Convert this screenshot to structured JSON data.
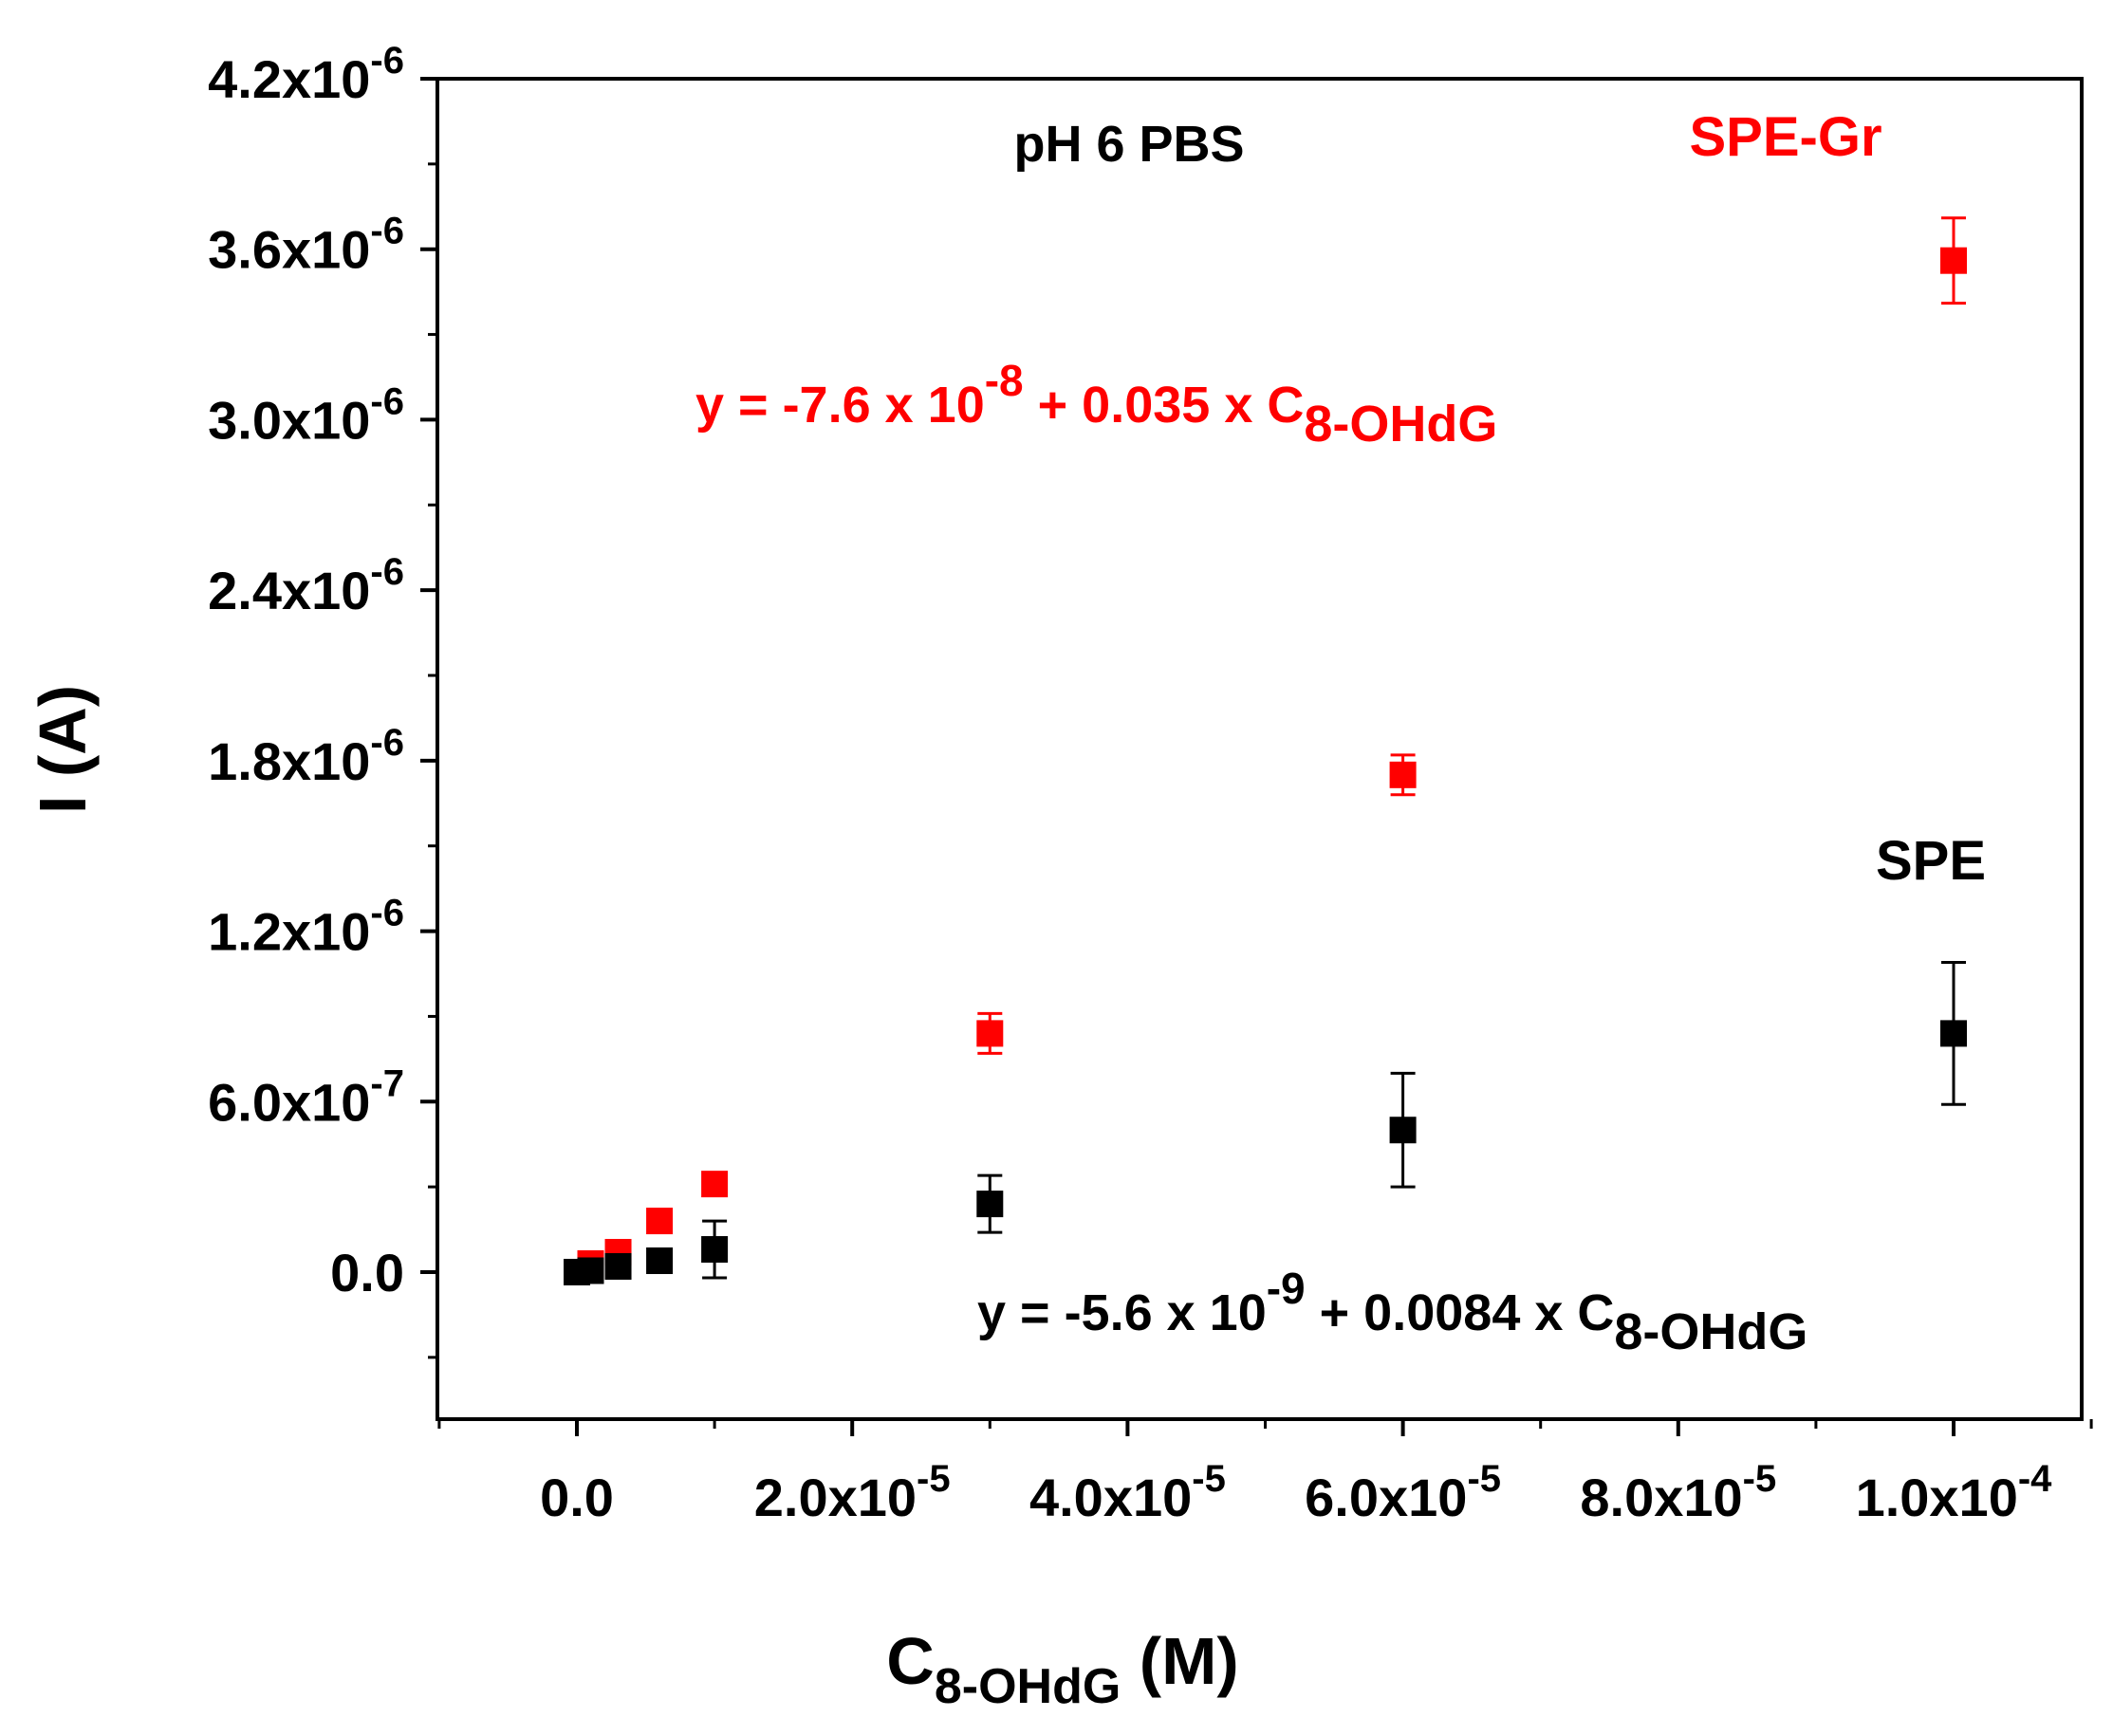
{
  "chart_data": {
    "type": "scatter",
    "title": "",
    "xlabel": {
      "main": "C",
      "sub": "8-OHdG",
      "unit": " (M)"
    },
    "ylabel": "I (A)",
    "xlim": [
      -1e-05,
      0.00011
    ],
    "ylim": [
      -7e-07,
      4.2e-06
    ],
    "grid": false,
    "legend": "none",
    "x_ticks": [
      {
        "value": 0,
        "mantissa": "0.0",
        "exponent": ""
      },
      {
        "value": 2e-05,
        "mantissa": "2.0x10",
        "exponent": "-5"
      },
      {
        "value": 4e-05,
        "mantissa": "4.0x10",
        "exponent": "-5"
      },
      {
        "value": 6e-05,
        "mantissa": "6.0x10",
        "exponent": "-5"
      },
      {
        "value": 8e-05,
        "mantissa": "8.0x10",
        "exponent": "-5"
      },
      {
        "value": 0.0001,
        "mantissa": "1.0x10",
        "exponent": "-4"
      }
    ],
    "x_minor_ticks": [
      -1e-05,
      1e-05,
      3e-05,
      5e-05,
      7e-05,
      9e-05,
      0.00011
    ],
    "y_ticks": [
      {
        "value": 0,
        "mantissa": "0.0",
        "exponent": ""
      },
      {
        "value": 6e-07,
        "mantissa": "6.0x10",
        "exponent": "-7"
      },
      {
        "value": 1.2e-06,
        "mantissa": "1.2x10",
        "exponent": "-6"
      },
      {
        "value": 1.8e-06,
        "mantissa": "1.8x10",
        "exponent": "-6"
      },
      {
        "value": 2.4e-06,
        "mantissa": "2.4x10",
        "exponent": "-6"
      },
      {
        "value": 3e-06,
        "mantissa": "3.0x10",
        "exponent": "-6"
      },
      {
        "value": 3.6e-06,
        "mantissa": "3.6x10",
        "exponent": "-6"
      },
      {
        "value": 4.2e-06,
        "mantissa": "4.2x10",
        "exponent": "-6"
      }
    ],
    "y_minor_ticks": [
      -3e-07,
      3e-07,
      9e-07,
      1.5e-06,
      2.1e-06,
      2.7e-06,
      3.3e-06,
      3.9e-06
    ],
    "series": [
      {
        "name": "SPE",
        "color": "#000000",
        "x": [
          0,
          1e-06,
          3e-06,
          6e-06,
          1e-05,
          3e-05,
          6e-05,
          0.0001
        ],
        "y": [
          0,
          5e-09,
          2e-08,
          4e-08,
          8e-08,
          2.4e-07,
          5e-07,
          8.4e-07
        ],
        "err": [
          0,
          3e-08,
          3e-08,
          4e-08,
          1e-07,
          1e-07,
          2e-07,
          2.5e-07
        ]
      },
      {
        "name": "SPE-Gr",
        "color": "#ff0000",
        "x": [
          0,
          1e-06,
          3e-06,
          6e-06,
          1e-05,
          3e-05,
          6e-05,
          0.0001
        ],
        "y": [
          0,
          3e-08,
          7e-08,
          1.8e-07,
          3.1e-07,
          8.4e-07,
          1.75e-06,
          3.56e-06
        ],
        "err": [
          0,
          0,
          0,
          0,
          0,
          7e-08,
          7e-08,
          1.5e-07
        ]
      }
    ],
    "annotations": {
      "condition": "pH 6 PBS",
      "spe_gr_label": "SPE-Gr",
      "spe_label": "SPE",
      "spe_gr_equation": {
        "prefix": "y = -7.6 x 10",
        "exp": "-8",
        "middle": " + 0.035 x C",
        "sub": "8-OHdG"
      },
      "spe_equation": {
        "prefix": "y = -5.6 x 10",
        "exp": "-9",
        "middle": " + 0.0084 x C",
        "sub": "8-OHdG"
      }
    }
  }
}
